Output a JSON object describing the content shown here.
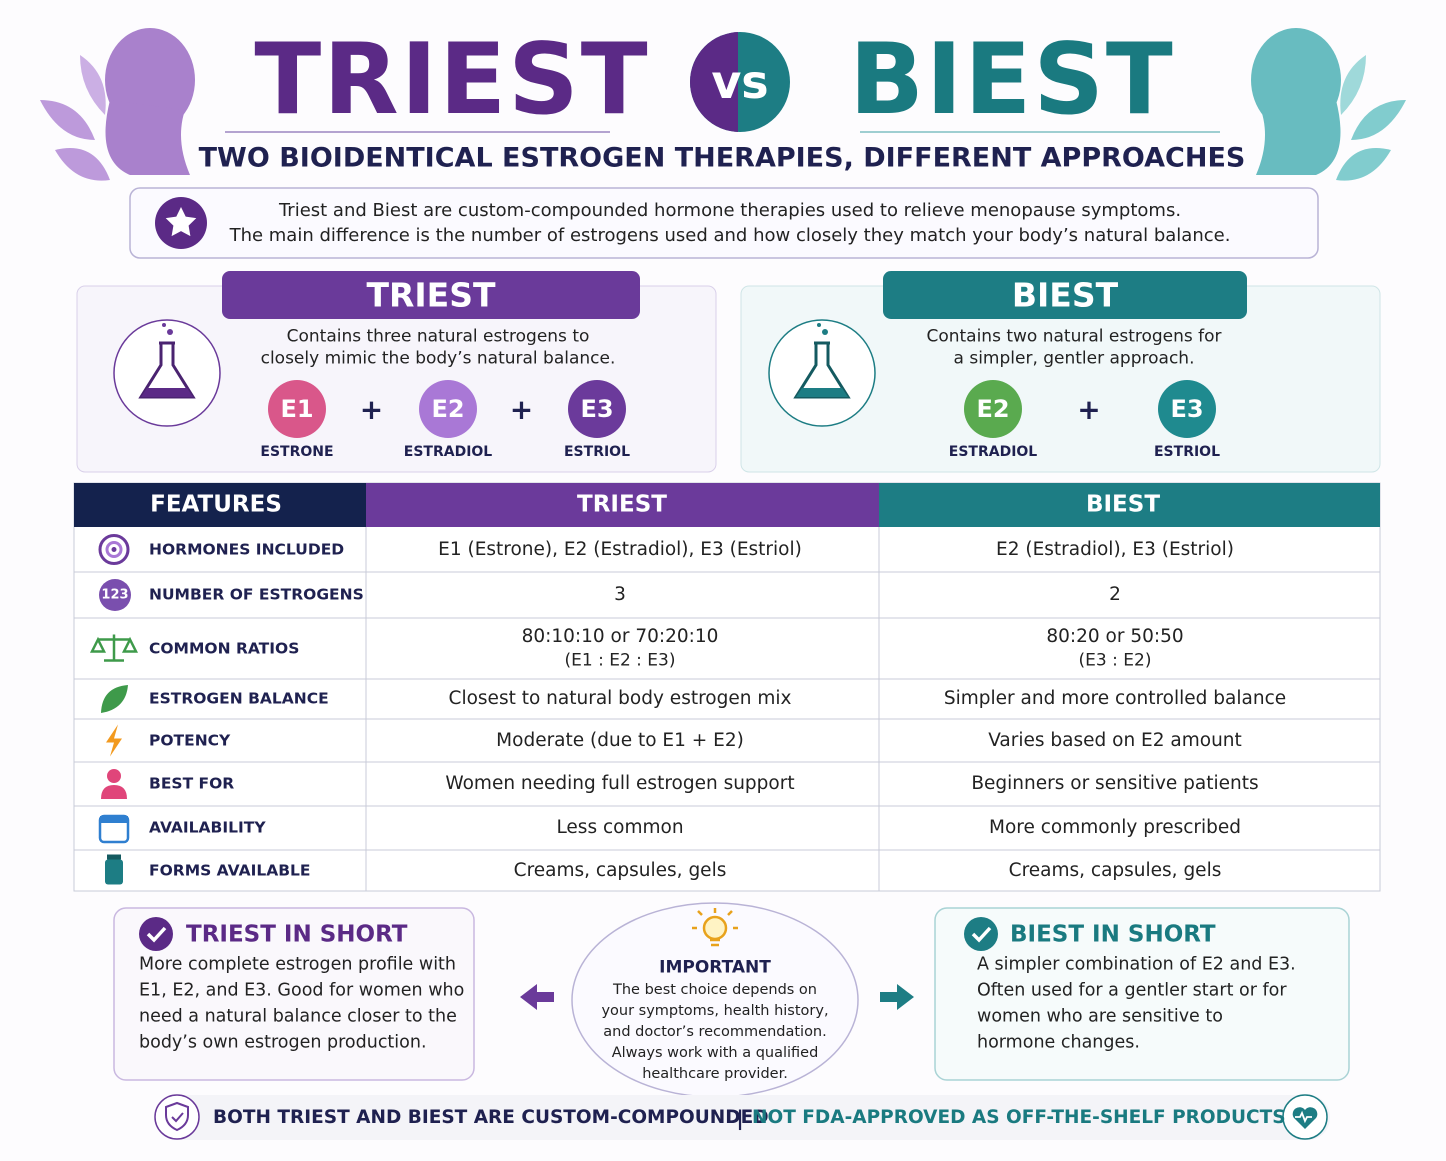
{
  "header": {
    "title_left": "TRIEST",
    "versus": "vs",
    "title_right": "BIEST",
    "subtitle": "TWO BIOIDENTICAL ESTROGEN THERAPIES, DIFFERENT APPROACHES"
  },
  "intro": {
    "lines": [
      "Triest and Biest are custom-compounded hormone therapies used to relieve menopause symptoms.",
      "The main difference is the number of estrogens used and how closely they match your body’s natural balance."
    ]
  },
  "cards": [
    {
      "title": "TRIEST",
      "description": [
        "Contains three natural estrogens to",
        "closely mimic the body’s natural balance."
      ],
      "operator": "+",
      "hormones": [
        {
          "code": "E1",
          "name": "ESTRONE"
        },
        {
          "code": "E2",
          "name": "ESTRADIOL"
        },
        {
          "code": "E3",
          "name": "ESTRIOL"
        }
      ]
    },
    {
      "title": "BIEST",
      "description": [
        "Contains two natural estrogens for",
        "a simpler, gentler approach."
      ],
      "operator": "+",
      "hormones": [
        {
          "code": "E2",
          "name": "ESTRADIOL"
        },
        {
          "code": "E3",
          "name": "ESTRIOL"
        }
      ]
    }
  ],
  "table": {
    "headers": [
      "FEATURES",
      "TRIEST",
      "BIEST"
    ],
    "rows": [
      {
        "feature": "HORMONES INCLUDED",
        "triest": [
          "E1 (Estrone), E2 (Estradiol), E3 (Estriol)"
        ],
        "biest": [
          "E2 (Estradiol), E3 (Estriol)"
        ]
      },
      {
        "feature": "NUMBER OF ESTROGENS",
        "icon_label": "123",
        "triest": [
          "3"
        ],
        "biest": [
          "2"
        ]
      },
      {
        "feature": "COMMON RATIOS",
        "triest": [
          "80:10:10 or 70:20:10",
          "(E1 : E2 : E3)"
        ],
        "biest": [
          "80:20 or 50:50",
          "(E3 : E2)"
        ]
      },
      {
        "feature": "ESTROGEN BALANCE",
        "triest": [
          "Closest to natural body estrogen mix"
        ],
        "biest": [
          "Simpler and more controlled balance"
        ]
      },
      {
        "feature": "POTENCY",
        "triest": [
          "Moderate (due to E1 + E2)"
        ],
        "biest": [
          "Varies based on E2 amount"
        ]
      },
      {
        "feature": "BEST FOR",
        "triest": [
          "Women needing full estrogen support"
        ],
        "biest": [
          "Beginners or sensitive patients"
        ]
      },
      {
        "feature": "AVAILABILITY",
        "triest": [
          "Less common"
        ],
        "biest": [
          "More commonly prescribed"
        ]
      },
      {
        "feature": "FORMS AVAILABLE",
        "triest": [
          "Creams, capsules, gels"
        ],
        "biest": [
          "Creams, capsules, gels"
        ]
      }
    ]
  },
  "summaries": [
    {
      "title": "TRIEST IN SHORT",
      "lines": [
        "More complete estrogen profile with",
        "E1, E2, and E3. Good for women who",
        "need a natural balance closer to the",
        "body’s own estrogen production."
      ]
    },
    {
      "title": "BIEST IN SHORT",
      "lines": [
        "A simpler combination of E2 and E3.",
        "Often used for a gentler start or for",
        "women who are sensitive to",
        "hormone changes."
      ]
    }
  ],
  "important": {
    "title": "IMPORTANT",
    "lines": [
      "The best choice depends on",
      "your symptoms, health history,",
      "and doctor’s recommendation.",
      "Always work with a qualified",
      "healthcare provider."
    ]
  },
  "footer": {
    "left": "BOTH TRIEST AND BIEST ARE CUSTOM-COMPOUNDED",
    "separator": "|",
    "right": "NOT FDA-APPROVED AS OFF-THE-SHELF PRODUCTS"
  }
}
